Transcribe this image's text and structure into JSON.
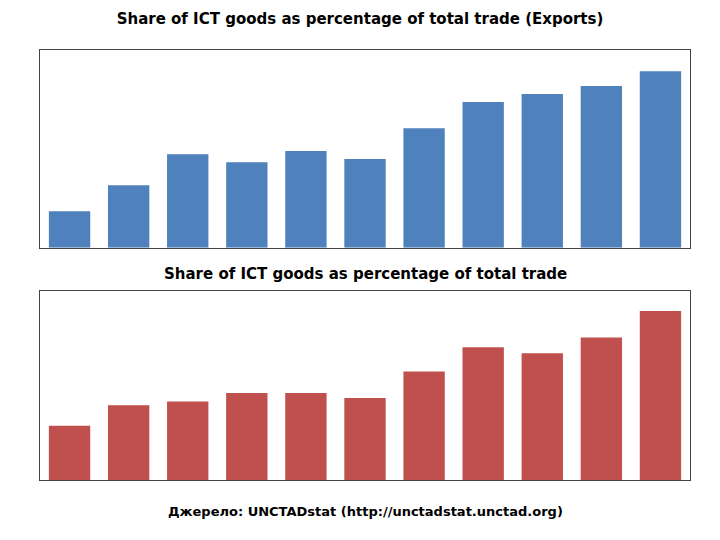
{
  "chart_data": [
    {
      "type": "bar",
      "title": "Share of ICT goods as percentage of total trade (Exports)",
      "categories": [
        null,
        null,
        null,
        null,
        null,
        null,
        null,
        null,
        null,
        null,
        null
      ],
      "values": [
        3.2,
        5.5,
        8.2,
        7.5,
        8.5,
        7.8,
        10.5,
        12.8,
        13.5,
        14.2,
        15.5
      ],
      "color": "#4F81BD",
      "ylim": [
        0,
        17.36
      ],
      "yticks": [],
      "grid": false,
      "tick_labels": false
    },
    {
      "type": "bar",
      "title": "Share of ICT goods as percentage of total trade",
      "categories": [
        null,
        null,
        null,
        null,
        null,
        null,
        null,
        null,
        null,
        null,
        null
      ],
      "values": [
        4.5,
        6.2,
        6.5,
        7.2,
        7.2,
        6.8,
        9.0,
        11.0,
        10.5,
        11.8,
        14.0
      ],
      "color": "#C0504D",
      "ylim": [
        0,
        15.68
      ],
      "yticks": [],
      "grid": false,
      "tick_labels": false,
      "annotations": [
        "Джерело: UNCTADstat (http://unctadstat.unctad.org)"
      ]
    }
  ]
}
